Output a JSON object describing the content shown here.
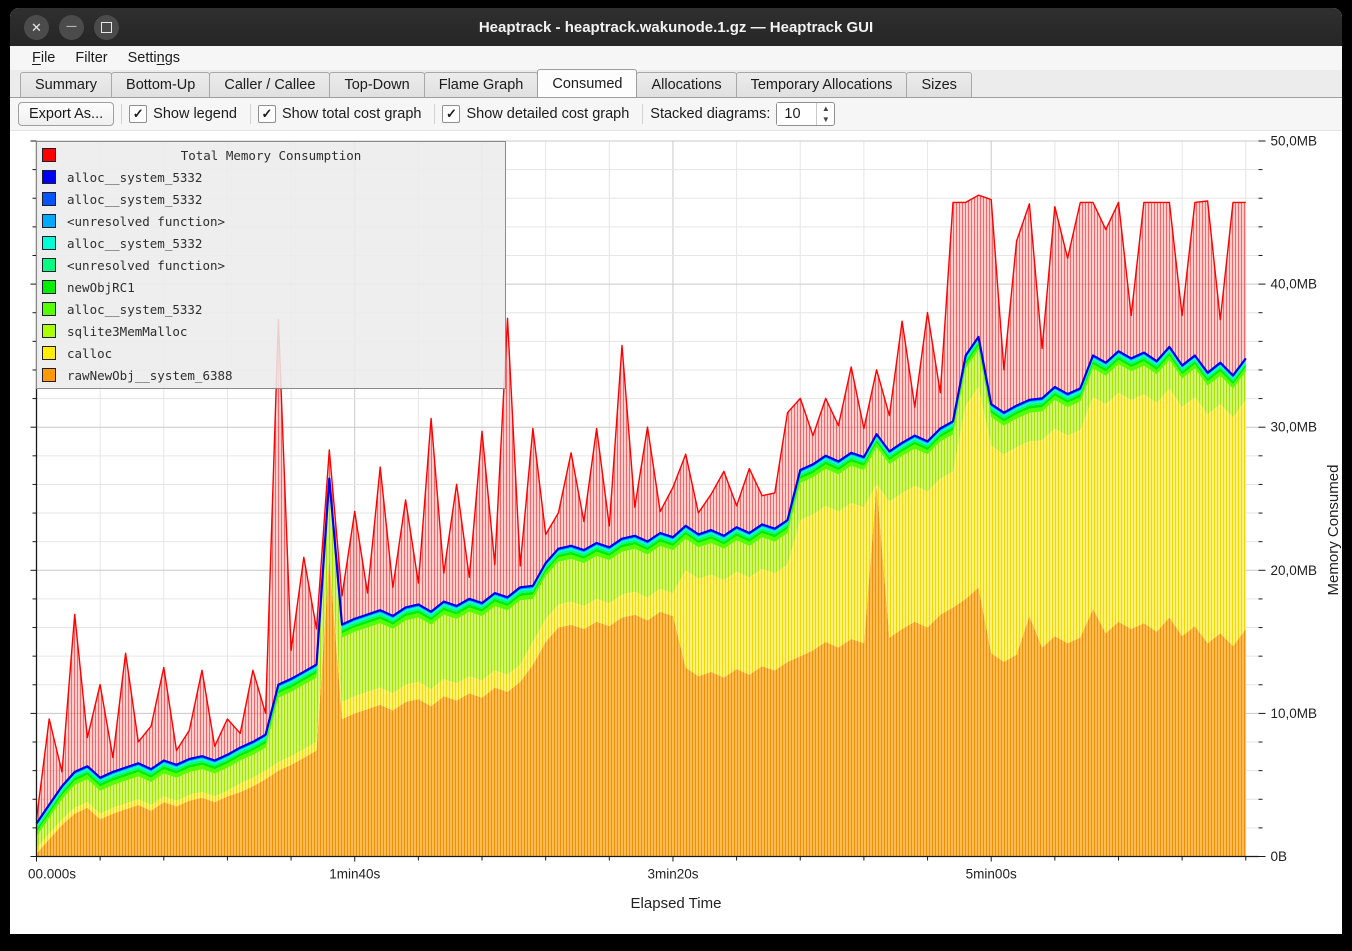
{
  "header": {
    "title": "Heaptrack - heaptrack.wakunode.1.gz — Heaptrack GUI"
  },
  "window_controls": {
    "close": "✕",
    "minimize": "—",
    "maximize": "□"
  },
  "menu": {
    "items": [
      {
        "label": "File",
        "mnemonic_index": 0
      },
      {
        "label": "Filter",
        "mnemonic_index": -1
      },
      {
        "label": "Settings",
        "mnemonic_index": 5
      }
    ]
  },
  "tabs": {
    "active_index": 5,
    "items": [
      "Summary",
      "Bottom-Up",
      "Caller / Callee",
      "Top-Down",
      "Flame Graph",
      "Consumed",
      "Allocations",
      "Temporary Allocations",
      "Sizes"
    ]
  },
  "toolbar": {
    "export_label": "Export As...",
    "checkboxes": [
      {
        "label": "Show legend",
        "checked": true
      },
      {
        "label": "Show total cost graph",
        "checked": true
      },
      {
        "label": "Show detailed cost graph",
        "checked": true
      }
    ],
    "stacked_label": "Stacked diagrams:",
    "stacked_value": "10",
    "check_glyph": "✓"
  },
  "legend": {
    "title": {
      "label": "Total Memory Consumption",
      "color": "#ff0000"
    },
    "items": [
      {
        "label": "alloc__system_5332",
        "color": "#0000f0"
      },
      {
        "label": "alloc__system_5332",
        "color": "#0055ff"
      },
      {
        "label": "<unresolved function>",
        "color": "#00aaff"
      },
      {
        "label": "alloc__system_5332",
        "color": "#00ffd5"
      },
      {
        "label": "<unresolved function>",
        "color": "#00ff80"
      },
      {
        "label": "newObjRC1",
        "color": "#00ee00"
      },
      {
        "label": "alloc__system_5332",
        "color": "#55ff00"
      },
      {
        "label": "sqlite3MemMalloc",
        "color": "#aaff00"
      },
      {
        "label": "calloc",
        "color": "#ffee00"
      },
      {
        "label": "rawNewObj__system_6388",
        "color": "#ff9900"
      }
    ]
  },
  "chart_data": {
    "type": "area",
    "stacked": true,
    "title": "Total Memory Consumption",
    "xlabel": "Elapsed Time",
    "ylabel": "Memory Consumed",
    "xlim_seconds": [
      0,
      384
    ],
    "ylim_mb": [
      0,
      50
    ],
    "grid": {
      "x_minor_step_s": 20,
      "x_major_step_s": 100,
      "y_minor_step_mb": 2,
      "y_major_step_mb": 10
    },
    "x_ticks": [
      {
        "t": 0,
        "label": "00.000s"
      },
      {
        "t": 100,
        "label": "1min40s"
      },
      {
        "t": 200,
        "label": "3min20s"
      },
      {
        "t": 300,
        "label": "5min00s"
      }
    ],
    "y_ticks": [
      {
        "mb": 0,
        "label": "0B"
      },
      {
        "mb": 10,
        "label": "10,0MB"
      },
      {
        "mb": 20,
        "label": "20,0MB"
      },
      {
        "mb": 30,
        "label": "30,0MB"
      },
      {
        "mb": 40,
        "label": "40,0MB"
      },
      {
        "mb": 50,
        "label": "50,0MB"
      }
    ],
    "x_seconds": [
      0,
      4,
      8,
      12,
      16,
      20,
      24,
      28,
      32,
      36,
      40,
      44,
      48,
      52,
      56,
      60,
      64,
      68,
      72,
      76,
      80,
      84,
      88,
      92,
      96,
      100,
      104,
      108,
      112,
      116,
      120,
      124,
      128,
      132,
      136,
      140,
      144,
      148,
      152,
      156,
      160,
      164,
      168,
      172,
      176,
      180,
      184,
      188,
      192,
      196,
      200,
      204,
      208,
      212,
      216,
      220,
      224,
      228,
      232,
      236,
      240,
      244,
      248,
      252,
      256,
      260,
      264,
      268,
      272,
      276,
      280,
      284,
      288,
      292,
      296,
      300,
      304,
      308,
      312,
      316,
      320,
      324,
      328,
      332,
      336,
      340,
      344,
      348,
      352,
      356,
      360,
      364,
      368,
      372,
      376,
      380
    ],
    "bands_mb": {
      "rawNewObj__system_6388": [
        0.2,
        1.2,
        2.2,
        3.0,
        3.4,
        2.6,
        3.0,
        3.3,
        3.6,
        3.2,
        3.8,
        3.5,
        3.9,
        4.1,
        3.8,
        4.2,
        4.5,
        4.9,
        5.4,
        6.0,
        6.4,
        6.9,
        7.4,
        21.0,
        9.6,
        10.0,
        10.3,
        10.6,
        10.2,
        10.8,
        11.0,
        10.5,
        11.2,
        10.9,
        11.4,
        11.1,
        11.8,
        11.5,
        12.2,
        13.4,
        15.0,
        16.0,
        16.2,
        15.9,
        16.4,
        16.1,
        16.7,
        16.9,
        16.5,
        17.1,
        16.8,
        13.2,
        12.6,
        12.9,
        12.5,
        13.1,
        12.7,
        13.3,
        13.0,
        13.6,
        14.0,
        14.4,
        15.0,
        14.6,
        15.2,
        14.9,
        26.0,
        15.3,
        15.9,
        16.4,
        16.0,
        16.9,
        17.4,
        18.0,
        18.8,
        14.2,
        13.6,
        14.1,
        16.8,
        14.6,
        15.4,
        14.9,
        15.3,
        17.3,
        15.6,
        16.4,
        15.9,
        16.3,
        15.7,
        16.7,
        15.4,
        16.1,
        14.9,
        15.6,
        14.7,
        15.9
      ],
      "calloc": [
        0.4,
        0.4,
        0.4,
        0.4,
        0.4,
        0.4,
        0.4,
        0.4,
        0.4,
        0.4,
        0.4,
        0.4,
        0.4,
        0.4,
        0.4,
        0.4,
        0.6,
        0.6,
        0.6,
        0.6,
        0.6,
        0.6,
        0.6,
        0.0,
        1.2,
        1.2,
        1.2,
        1.2,
        1.2,
        1.2,
        1.2,
        1.2,
        1.2,
        1.2,
        1.2,
        1.2,
        1.2,
        1.2,
        1.2,
        1.6,
        1.6,
        1.6,
        1.6,
        1.6,
        1.6,
        1.6,
        1.6,
        1.6,
        1.6,
        1.6,
        1.6,
        6.8,
        6.8,
        6.8,
        6.8,
        6.8,
        6.8,
        6.8,
        6.8,
        6.8,
        9.5,
        9.5,
        9.5,
        9.5,
        9.5,
        9.5,
        0.0,
        9.5,
        9.5,
        9.5,
        9.5,
        9.5,
        9.5,
        13.5,
        14.0,
        14.5,
        14.5,
        14.5,
        12.2,
        14.5,
        14.5,
        14.5,
        14.5,
        14.8,
        16.0,
        16.0,
        16.0,
        16.0,
        16.0,
        16.0,
        16.0,
        16.0,
        16.0,
        16.0,
        16.0,
        16.0
      ],
      "sqlite3MemMalloc": [
        0.8,
        1.1,
        1.4,
        1.6,
        1.6,
        1.6,
        1.6,
        1.6,
        1.6,
        1.6,
        1.6,
        1.6,
        1.6,
        1.6,
        1.6,
        1.6,
        1.6,
        1.6,
        1.6,
        4.5,
        4.5,
        4.5,
        4.5,
        4.5,
        4.5,
        4.5,
        4.5,
        4.5,
        4.5,
        4.5,
        4.5,
        4.5,
        4.5,
        4.5,
        4.5,
        4.5,
        4.5,
        4.5,
        4.5,
        3.0,
        3.0,
        3.0,
        3.0,
        3.0,
        3.0,
        3.0,
        3.0,
        3.0,
        3.0,
        3.0,
        3.0,
        2.2,
        2.2,
        2.2,
        2.2,
        2.2,
        2.2,
        2.2,
        2.2,
        2.2,
        2.6,
        2.6,
        2.6,
        2.6,
        2.6,
        2.6,
        2.6,
        2.6,
        2.6,
        2.6,
        2.6,
        2.6,
        2.6,
        2.6,
        2.6,
        2.0,
        2.0,
        2.0,
        2.0,
        2.0,
        2.0,
        2.0,
        2.0,
        2.0,
        2.0,
        2.0,
        2.0,
        2.0,
        2.0,
        2.0,
        2.0,
        2.0,
        2.0,
        2.0,
        2.0,
        2.0
      ]
    },
    "thin_bands": [
      {
        "name": "alloc__system_5332",
        "color": "#55ff00",
        "h_mb": 0.3
      },
      {
        "name": "newObjRC1",
        "color": "#00ee00",
        "h_mb": 0.2
      },
      {
        "name": "<unresolved function>",
        "color": "#00ff80",
        "h_mb": 0.15
      },
      {
        "name": "alloc__system_5332",
        "color": "#00ffd5",
        "h_mb": 0.1
      },
      {
        "name": "<unresolved function>",
        "color": "#00aaff",
        "h_mb": 0.1
      },
      {
        "name": "alloc__system_5332",
        "color": "#0055ff",
        "h_mb": 0.06
      }
    ],
    "total_extra_mb": [
      0.3,
      6,
      1,
      11,
      2,
      6.5,
      1,
      8,
      1.5,
      3,
      6.5,
      1,
      2,
      6,
      1,
      2.5,
      1,
      5,
      1.5,
      25.5,
      2,
      8,
      2.5,
      2,
      2,
      7.5,
      1.5,
      10,
      2,
      7.5,
      1.5,
      13.5,
      2,
      8.5,
      1.5,
      12,
      2,
      19.5,
      1.5,
      11,
      2,
      2.5,
      6.5,
      2,
      8,
      1.5,
      13.5,
      2,
      8,
      1.5,
      3.5,
      5,
      1.5,
      2.5,
      4.5,
      1.5,
      4.5,
      2,
      2.5,
      7.5,
      5,
      2,
      4,
      2.5,
      6,
      2,
      4.5,
      2.5,
      8.5,
      2,
      9,
      2.5,
      15.3,
      10.7,
      9.9,
      14.3,
      3,
      11.5,
      13.7,
      3.5,
      12.6,
      9.5,
      13,
      10.7,
      9.3,
      10.4,
      3,
      10.5,
      11.1,
      10.1,
      3.5,
      10.7,
      12,
      3,
      12.1,
      10.9
    ],
    "colors": {
      "total_line": "#ff0000",
      "total_fill_bg": "rgba(255,96,96,0.30)",
      "total_fill_line": "rgba(240,0,0,0.50)",
      "top_line": "#0000f0",
      "rawNewObj_bg": "#ffbb55",
      "rawNewObj_line": "#f09000",
      "calloc_bg": "#fff27a",
      "calloc_line": "#f0d800",
      "sqlite3_bg": "#d0f573",
      "sqlite3_line": "#a8e000",
      "grid_minor": "#e6e6e6",
      "grid_major": "#c9c9c9",
      "axis": "#1a1a1a"
    }
  }
}
